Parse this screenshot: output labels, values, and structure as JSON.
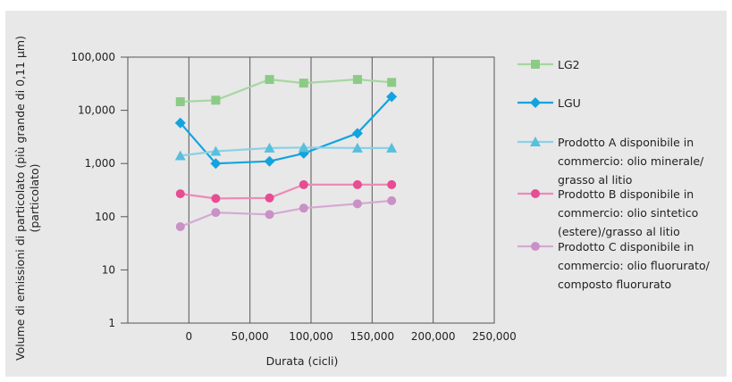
{
  "chart_data": {
    "type": "line",
    "title": "",
    "xlabel": "Durata (cicli)",
    "ylabel_lines": [
      "Volume di emissioni di particolato (più grande di 0,11 µm)",
      "(particolato)"
    ],
    "xlim": [
      -50000,
      250000
    ],
    "ylim": [
      1,
      100000
    ],
    "y_scale": "log",
    "x_ticks": [
      0,
      50000,
      100000,
      150000,
      200000,
      250000
    ],
    "x_tick_labels": [
      "0",
      "50,000",
      "100,000",
      "150,000",
      "200,000",
      "250,000"
    ],
    "y_ticks": [
      1,
      10,
      100,
      1000,
      10000,
      100000
    ],
    "y_tick_labels": [
      "1",
      "10",
      "100",
      "1,000",
      "10,000",
      "100,000"
    ],
    "grid": "vertical",
    "legend_position": "right",
    "series": [
      {
        "name": "LG2",
        "label_lines": [
          "LG2"
        ],
        "marker": "square",
        "color": "#a6d7a0",
        "marker_color": "#8ccb86",
        "x": [
          -7000,
          22000,
          66000,
          94000,
          138000,
          166000
        ],
        "y": [
          14500,
          15500,
          38000,
          32500,
          38000,
          33500
        ]
      },
      {
        "name": "LGU",
        "label_lines": [
          "LGU"
        ],
        "marker": "diamond",
        "color": "#12a3e0",
        "marker_color": "#12a3e0",
        "x": [
          -7000,
          22000,
          66000,
          94000,
          138000,
          166000
        ],
        "y": [
          5800,
          1000,
          1100,
          1550,
          3700,
          18000
        ]
      },
      {
        "name": "Prodotto A disponibile in commercio: olio minerale/grasso al litio",
        "label_lines": [
          "Prodotto A disponibile in",
          "commercio: olio minerale/",
          "grasso al litio"
        ],
        "marker": "triangle",
        "color": "#8dd0e4",
        "marker_color": "#58bfdc",
        "x": [
          -7000,
          22000,
          66000,
          94000,
          138000,
          166000
        ],
        "y": [
          1400,
          1700,
          1950,
          2000,
          1950,
          1950
        ]
      },
      {
        "name": "Prodotto B disponibile in commercio: olio sintetico (estere)/grasso al litio",
        "label_lines": [
          "Prodotto B disponibile in",
          "commercio: olio sintetico",
          "(estere)/grasso al litio"
        ],
        "marker": "circle",
        "color": "#ee8ab6",
        "marker_color": "#e64d92",
        "x": [
          -7000,
          22000,
          66000,
          94000,
          138000,
          166000
        ],
        "y": [
          270,
          220,
          225,
          400,
          400,
          400
        ]
      },
      {
        "name": "Prodotto C disponibile in commercio: olio fluorurato/composto fluorurato",
        "label_lines": [
          "Prodotto C disponibile in",
          "commercio: olio fluorurato/",
          "composto fluorurato"
        ],
        "marker": "circle",
        "color": "#d6a8d4",
        "marker_color": "#c991c6",
        "x": [
          -7000,
          22000,
          66000,
          94000,
          138000,
          166000
        ],
        "y": [
          65,
          120,
          110,
          145,
          175,
          200
        ]
      }
    ]
  }
}
